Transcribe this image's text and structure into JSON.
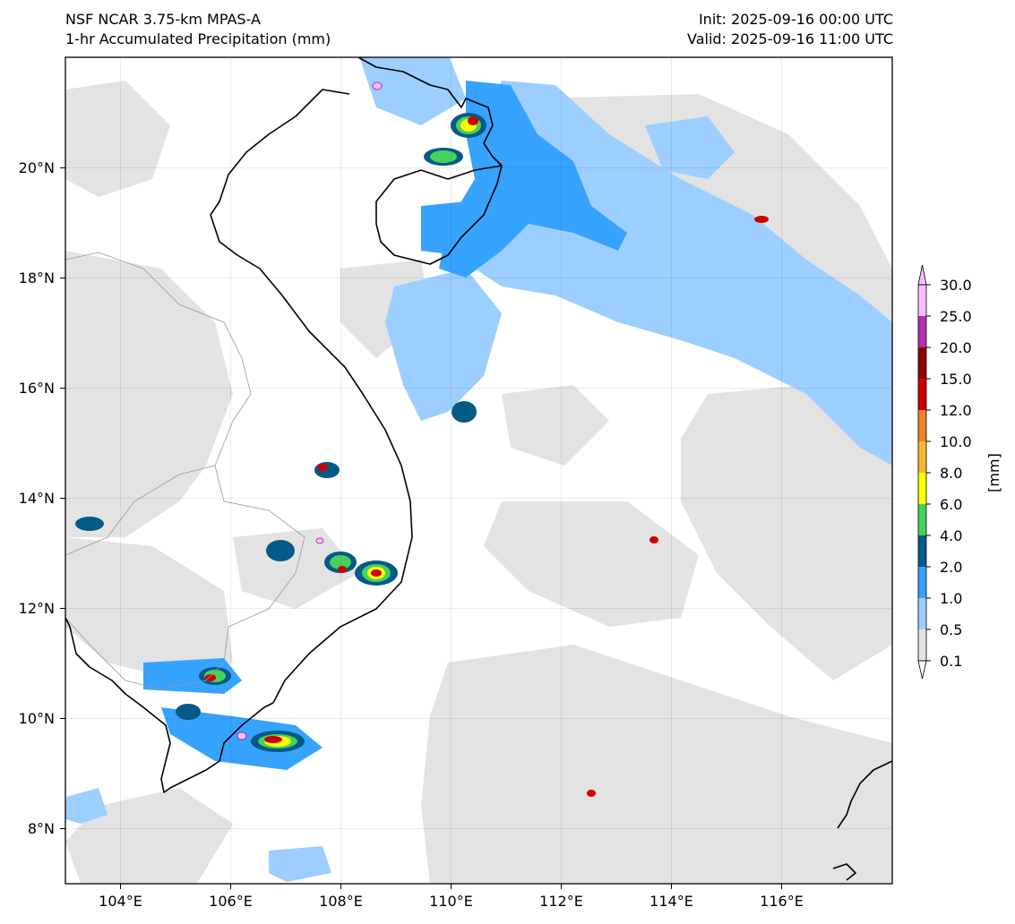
{
  "header": {
    "model": "NSF NCAR 3.75-km MPAS-A",
    "field": "1-hr Accumulated Precipitation (mm)",
    "init": "Init: 2025-09-16 00:00 UTC",
    "valid": "Valid: 2025-09-16 11:00 UTC"
  },
  "map": {
    "lon_range": [
      103,
      118
    ],
    "lat_range": [
      7,
      22
    ],
    "lon_ticks": [
      "104°E",
      "106°E",
      "108°E",
      "110°E",
      "112°E",
      "114°E",
      "116°E"
    ],
    "lat_ticks": [
      "8°N",
      "10°N",
      "12°N",
      "14°N",
      "16°N",
      "18°N",
      "20°N"
    ],
    "land_color": "#ffffff",
    "coastline_color": "#000000",
    "border_color": "#9a9a9a"
  },
  "colorbar": {
    "unit_label": "[mm]",
    "levels": [
      "0.1",
      "0.5",
      "1.0",
      "2.0",
      "4.0",
      "6.0",
      "8.0",
      "10.0",
      "12.0",
      "15.0",
      "20.0",
      "25.0",
      "30.0"
    ],
    "colors": [
      "#e3e3e3",
      "#9ccfff",
      "#36a3ff",
      "#035a86",
      "#47d15c",
      "#ffff00",
      "#f7b731",
      "#ef8427",
      "#cd0000",
      "#900000",
      "#b230b2",
      "#ffbfff"
    ],
    "extend": "both"
  }
}
